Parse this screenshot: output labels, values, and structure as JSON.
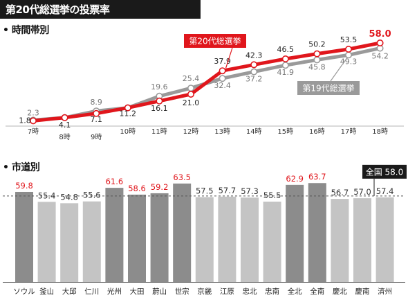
{
  "title": "第20代総選挙の投票率",
  "colors": {
    "red": "#e0161c",
    "gray": "#9a9a9a",
    "dark_bar": "#8c8c8c",
    "light_bar": "#c4c4c4"
  },
  "chart_data": [
    {
      "type": "line",
      "section_label": "時間帯別",
      "ylim": [
        0,
        60
      ],
      "x": [
        "7時",
        "8時",
        "9時",
        "10時",
        "11時",
        "12時",
        "13時",
        "14時",
        "15時",
        "16時",
        "17時",
        "18時"
      ],
      "series": [
        {
          "name": "第20代総選挙",
          "color": "#e0161c",
          "values": [
            1.8,
            4.1,
            7.1,
            11.2,
            16.1,
            21.0,
            37.9,
            42.3,
            46.5,
            50.2,
            53.5,
            58.0
          ]
        },
        {
          "name": "第19代総選挙",
          "color": "#9a9a9a",
          "values": [
            2.3,
            4.1,
            8.9,
            11.2,
            19.6,
            25.4,
            32.4,
            37.2,
            41.9,
            45.8,
            49.3,
            54.2
          ]
        }
      ]
    },
    {
      "type": "bar",
      "section_label": "市道別",
      "ylim": [
        0,
        65
      ],
      "categories": [
        "ソウル",
        "釜山",
        "大邱",
        "仁川",
        "光州",
        "大田",
        "蔚山",
        "世宗",
        "京畿",
        "江原",
        "忠北",
        "忠南",
        "全北",
        "全南",
        "慶北",
        "慶南",
        "済州"
      ],
      "values": [
        59.8,
        55.4,
        54.8,
        55.6,
        61.6,
        58.6,
        59.2,
        63.5,
        57.5,
        57.7,
        57.3,
        55.5,
        62.9,
        63.7,
        56.7,
        57.0,
        57.4
      ],
      "highlighted": [
        true,
        false,
        false,
        false,
        true,
        true,
        true,
        true,
        false,
        false,
        false,
        false,
        true,
        true,
        false,
        false,
        false
      ],
      "national": {
        "label": "全国",
        "value": 58.0
      }
    }
  ]
}
